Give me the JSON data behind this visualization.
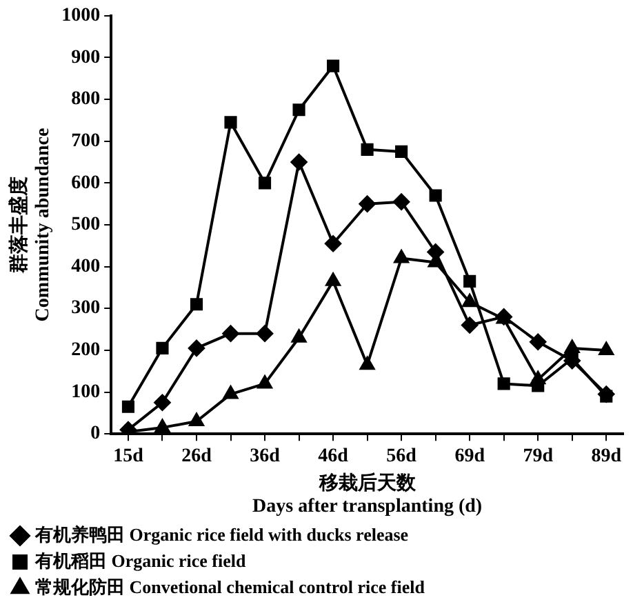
{
  "chart_data": {
    "type": "line",
    "xlabel": "移栽后天数\nDays after transplanting (d)",
    "ylabel": "群落丰盛度\nCommunity abundance",
    "categories": [
      "15d",
      null,
      "26d",
      null,
      "36d",
      null,
      "46d",
      null,
      "56d",
      null,
      "69d",
      null,
      "79d",
      null,
      "89d"
    ],
    "ylim": [
      0,
      1000
    ],
    "yticks": [
      0,
      100,
      200,
      300,
      400,
      500,
      600,
      700,
      800,
      900,
      1000
    ],
    "grid": false,
    "legend": "bottom",
    "line_style": "solid",
    "series": [
      {
        "name": "有机养鸭田 Organic rice field with ducks release",
        "color": "#000000",
        "marker": "diamond",
        "values": [
          10,
          75,
          205,
          240,
          240,
          650,
          455,
          550,
          555,
          435,
          260,
          280,
          220,
          175,
          95
        ]
      },
      {
        "name": "有机稻田 Organic rice field",
        "color": "#000000",
        "marker": "square",
        "values": [
          65,
          205,
          310,
          745,
          600,
          775,
          880,
          680,
          675,
          570,
          365,
          120,
          115,
          180,
          90
        ]
      },
      {
        "name": "常规化防田 Convetional chemical control rice field",
        "color": "#000000",
        "marker": "triangle",
        "values": [
          5,
          15,
          30,
          95,
          120,
          230,
          365,
          165,
          420,
          410,
          315,
          275,
          130,
          205,
          200
        ]
      }
    ]
  }
}
